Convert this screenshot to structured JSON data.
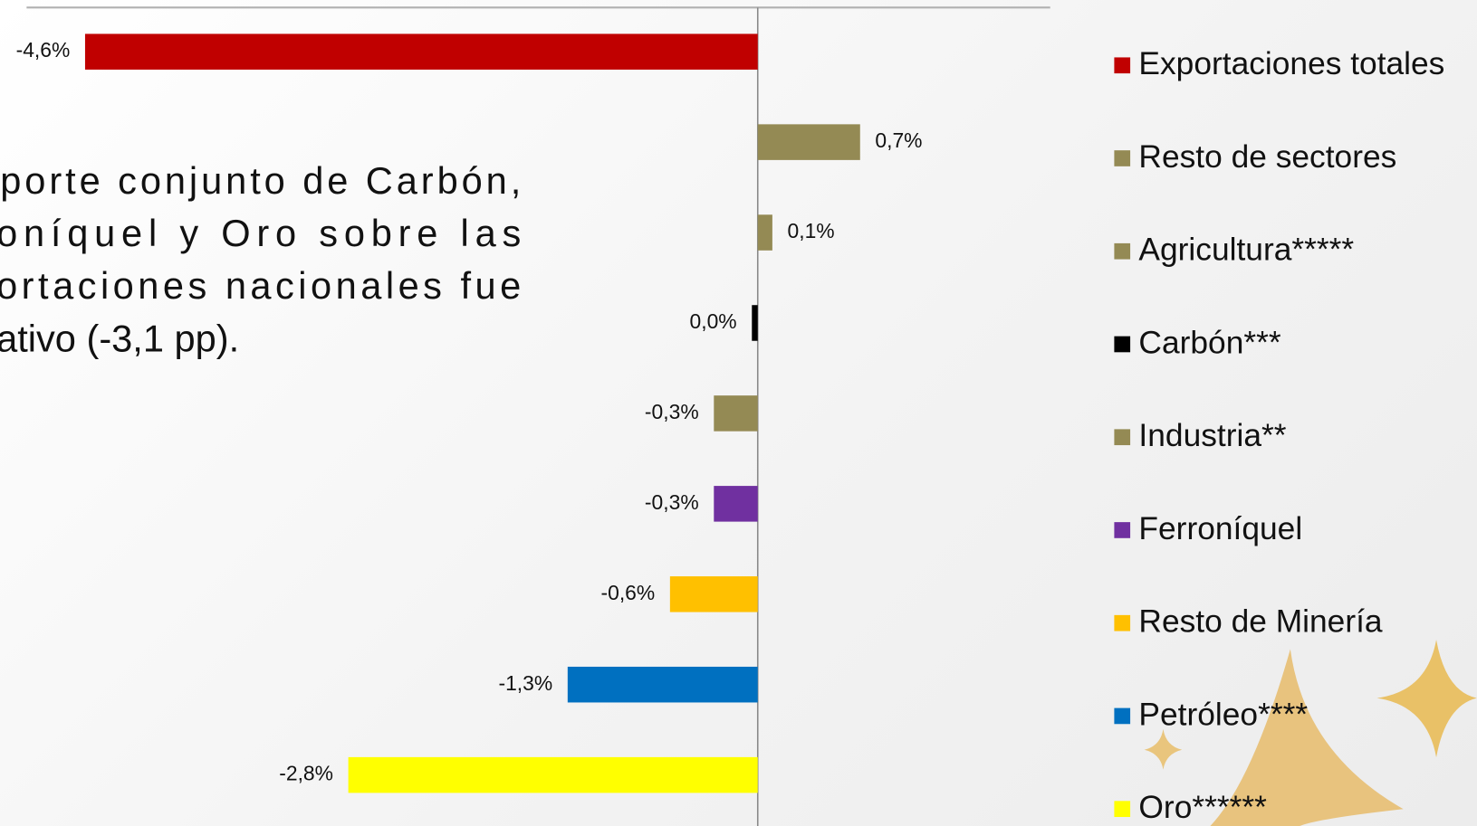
{
  "chart_data": {
    "type": "barh",
    "categories": [
      "Exportaciones totales",
      "Resto de sectores",
      "Agricultura*****",
      "Carbón***",
      "Industria**",
      "Ferroníquel",
      "Resto de Minería",
      "Petróleo****",
      "Oro******"
    ],
    "values": [
      -4.6,
      0.7,
      0.1,
      -0.04,
      -0.3,
      -0.3,
      -0.6,
      -1.3,
      -2.8
    ],
    "value_labels": [
      "-4,6%",
      "0,7%",
      "0,1%",
      "0,0%",
      "-0,3%",
      "-0,3%",
      "-0,6%",
      "-1,3%",
      "-2,8%"
    ],
    "colors": [
      "#c00000",
      "#948a54",
      "#948a54",
      "#000000",
      "#948a54",
      "#7030a0",
      "#ffc000",
      "#0070c0",
      "#ffff00"
    ],
    "xlim": [
      -5,
      2
    ],
    "legend": "right",
    "annotation": [
      "porte conjunto de Carbón,",
      "oníquel y Oro sobre las",
      "ortaciones nacionales fue",
      "ativo (-3,1 pp)."
    ]
  }
}
